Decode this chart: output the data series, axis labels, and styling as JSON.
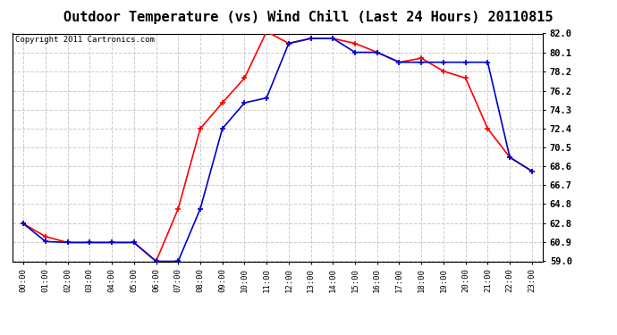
{
  "title": "Outdoor Temperature (vs) Wind Chill (Last 24 Hours) 20110815",
  "copyright": "Copyright 2011 Cartronics.com",
  "x_labels": [
    "00:00",
    "01:00",
    "02:00",
    "03:00",
    "04:00",
    "05:00",
    "06:00",
    "07:00",
    "08:00",
    "09:00",
    "10:00",
    "11:00",
    "12:00",
    "13:00",
    "14:00",
    "15:00",
    "16:00",
    "17:00",
    "18:00",
    "19:00",
    "20:00",
    "21:00",
    "22:00",
    "23:00"
  ],
  "temp": [
    62.8,
    61.5,
    60.9,
    60.9,
    60.9,
    60.9,
    59.0,
    64.3,
    72.4,
    75.0,
    77.5,
    82.2,
    81.0,
    81.5,
    81.5,
    81.0,
    80.1,
    79.1,
    79.5,
    78.2,
    77.5,
    72.4,
    69.5,
    68.1
  ],
  "wind_chill": [
    62.8,
    61.0,
    60.9,
    60.9,
    60.9,
    60.9,
    59.0,
    59.0,
    64.3,
    72.4,
    75.0,
    75.5,
    81.0,
    81.5,
    81.5,
    80.1,
    80.1,
    79.1,
    79.1,
    79.1,
    79.1,
    79.1,
    69.5,
    68.1
  ],
  "ylim_min": 59.0,
  "ylim_max": 82.0,
  "yticks": [
    59.0,
    60.9,
    62.8,
    64.8,
    66.7,
    68.6,
    70.5,
    72.4,
    74.3,
    76.2,
    78.2,
    80.1,
    82.0
  ],
  "temp_color": "#ff0000",
  "wind_chill_color": "#0000cc",
  "bg_color": "#ffffff",
  "plot_bg_color": "#ffffff",
  "grid_color": "#cccccc",
  "title_fontsize": 11,
  "copyright_fontsize": 6.5
}
